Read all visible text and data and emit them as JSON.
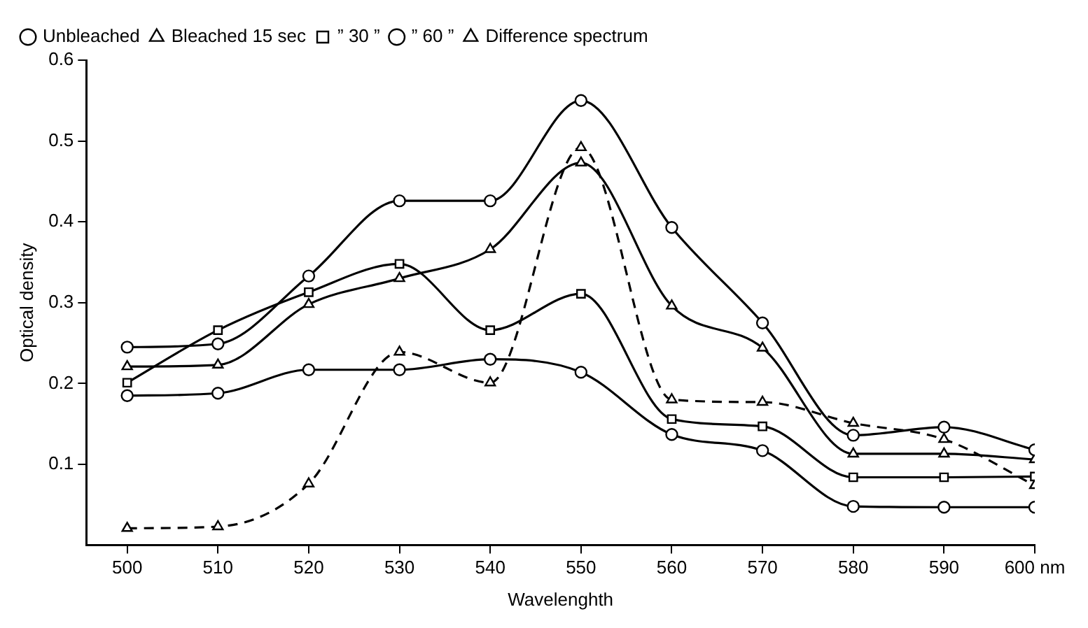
{
  "chart_data": {
    "type": "line",
    "xlabel": "Wavelenghth",
    "ylabel": "Optical density",
    "x": [
      500,
      510,
      520,
      530,
      540,
      550,
      560,
      570,
      580,
      590,
      600
    ],
    "series": [
      {
        "name": "Unbleached",
        "color": "#000000",
        "marker": "circle",
        "values": [
          0.245,
          0.249,
          0.333,
          0.426,
          0.426,
          0.55,
          0.393,
          0.275,
          0.136,
          0.146,
          0.118
        ]
      },
      {
        "name": "Bleached 15 sec",
        "color": "#000000",
        "marker": "triangle",
        "values": [
          0.221,
          0.223,
          0.298,
          0.33,
          0.366,
          0.473,
          0.296,
          0.244,
          0.113,
          0.113,
          0.106
        ]
      },
      {
        "name": "” 30 ”",
        "color": "#000000",
        "marker": "square",
        "values": [
          0.201,
          0.266,
          0.313,
          0.348,
          0.266,
          0.311,
          0.156,
          0.147,
          0.084,
          0.084,
          0.085
        ]
      },
      {
        "name": "” 60 ”",
        "color": "#000000",
        "marker": "circle",
        "values": [
          0.185,
          0.188,
          0.217,
          0.217,
          0.23,
          0.214,
          0.137,
          0.117,
          0.048,
          0.047,
          0.047
        ]
      },
      {
        "name": "Difference spectrum",
        "color": "#000000",
        "marker": "triangle",
        "line_style": "dashed",
        "values": [
          0.021,
          0.023,
          0.076,
          0.239,
          0.201,
          0.492,
          0.18,
          0.177,
          0.151,
          0.131,
          0.074
        ]
      }
    ],
    "xlim": [
      495.5,
      600
    ],
    "xticks": [
      500,
      510,
      520,
      530,
      540,
      550,
      560,
      570,
      580,
      590,
      {
        "value": 600,
        "label": "600 nm"
      }
    ],
    "ylim": [
      0,
      0.6
    ],
    "yticks": [
      0.1,
      0.2,
      0.3,
      0.4,
      0.5,
      0.6
    ],
    "grid": false,
    "legend": "top left"
  }
}
